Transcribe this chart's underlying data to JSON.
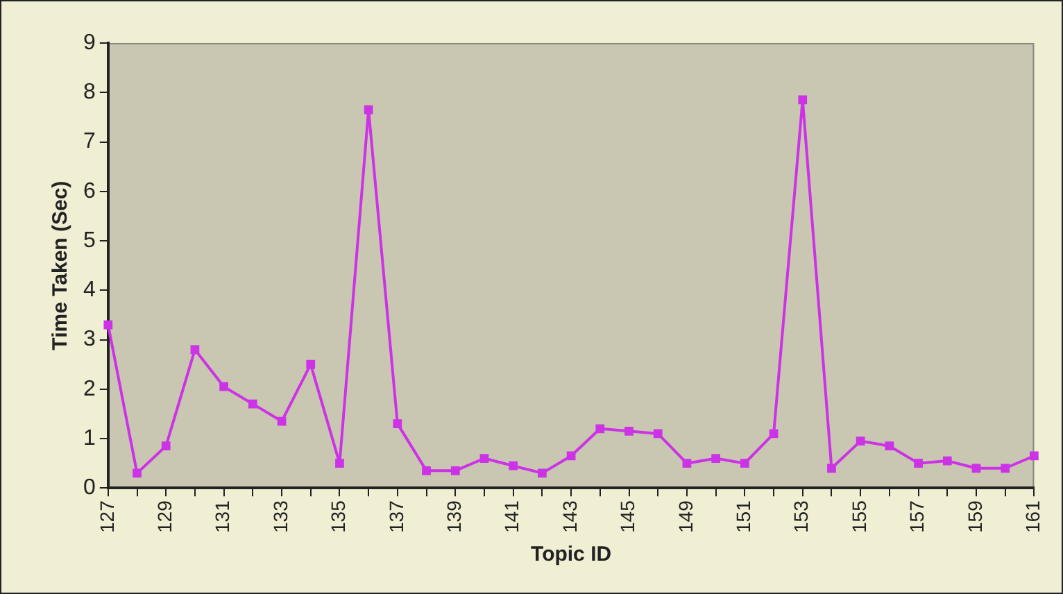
{
  "chart_data": {
    "type": "line",
    "xlabel": "Topic ID",
    "ylabel": "Time Taken (Sec)",
    "categories": [
      "127",
      null,
      "129",
      null,
      "131",
      null,
      "133",
      null,
      "135",
      null,
      "137",
      null,
      "139",
      null,
      "141",
      null,
      "143",
      null,
      "145",
      null,
      "149",
      null,
      "151",
      null,
      "153",
      null,
      "155",
      null,
      "157",
      null,
      "159",
      null,
      "161"
    ],
    "series": [
      {
        "color": "#cc33e6",
        "values": [
          3.3,
          0.3,
          0.85,
          2.8,
          2.05,
          1.7,
          1.35,
          2.5,
          0.5,
          7.65,
          1.3,
          0.35,
          0.35,
          0.6,
          0.45,
          0.3,
          0.65,
          1.2,
          1.15,
          1.1,
          0.5,
          0.6,
          0.5,
          1.1,
          7.85,
          0.4,
          0.95,
          0.85,
          0.5,
          0.55,
          0.4,
          0.4,
          0.65
        ]
      }
    ],
    "ylim": [
      0,
      9
    ],
    "yticks": [
      0,
      1,
      2,
      3,
      4,
      5,
      6,
      7,
      8,
      9
    ],
    "grid": false,
    "legend": false,
    "marker": "square",
    "line_style": "solid"
  }
}
